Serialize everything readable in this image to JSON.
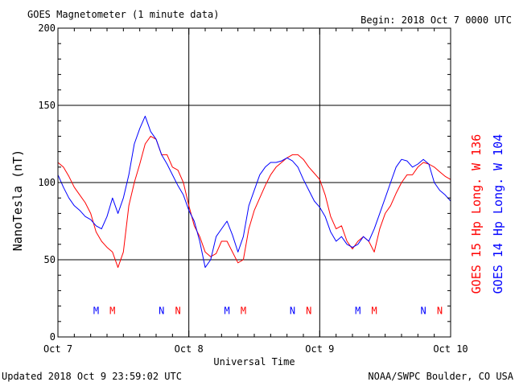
{
  "header": {
    "title": "GOES Magnetometer (1 minute data)",
    "begin": "Begin:  2018 Oct 7 0000 UTC"
  },
  "footer": {
    "updated": "Updated 2018 Oct  9 23:59:02 UTC",
    "credit": "NOAA/SWPC Boulder, CO USA"
  },
  "colors": {
    "goes15": "#ff0000",
    "goes14": "#0000ff",
    "frame": "#000000"
  },
  "chart_data": {
    "type": "line",
    "title": "GOES Magnetometer (1 minute data)",
    "xlabel": "Universal Time",
    "ylabel": "NanoTesla (nT)",
    "xlim": [
      0,
      72
    ],
    "ylim": [
      0,
      200
    ],
    "x_unit": "hours since 2018 Oct 7 0000 UTC",
    "x_ticks": [
      {
        "x": 0,
        "label": "Oct 7"
      },
      {
        "x": 24,
        "label": "Oct 8"
      },
      {
        "x": 48,
        "label": "Oct 9"
      },
      {
        "x": 72,
        "label": "Oct 10"
      }
    ],
    "y_ticks": [
      0,
      50,
      100,
      150,
      200
    ],
    "grid": true,
    "legend_position": "right, vertical",
    "series": [
      {
        "name": "GOES 15 Hp  Long. W 136",
        "color": "#ff0000",
        "points": [
          [
            0,
            113
          ],
          [
            1,
            110
          ],
          [
            2,
            104
          ],
          [
            3,
            97
          ],
          [
            4,
            92
          ],
          [
            5,
            87
          ],
          [
            6,
            80
          ],
          [
            7,
            68
          ],
          [
            8,
            62
          ],
          [
            9,
            58
          ],
          [
            10,
            55
          ],
          [
            11,
            45
          ],
          [
            12,
            55
          ],
          [
            13,
            85
          ],
          [
            14,
            100
          ],
          [
            15,
            112
          ],
          [
            16,
            125
          ],
          [
            17,
            130
          ],
          [
            18,
            128
          ],
          [
            19,
            118
          ],
          [
            20,
            118
          ],
          [
            21,
            110
          ],
          [
            22,
            108
          ],
          [
            23,
            100
          ],
          [
            24,
            85
          ],
          [
            25,
            72
          ],
          [
            26,
            65
          ],
          [
            27,
            55
          ],
          [
            28,
            52
          ],
          [
            29,
            54
          ],
          [
            30,
            62
          ],
          [
            31,
            62
          ],
          [
            32,
            55
          ],
          [
            33,
            48
          ],
          [
            34,
            50
          ],
          [
            35,
            70
          ],
          [
            36,
            82
          ],
          [
            37,
            90
          ],
          [
            38,
            98
          ],
          [
            39,
            105
          ],
          [
            40,
            110
          ],
          [
            41,
            113
          ],
          [
            42,
            116
          ],
          [
            43,
            118
          ],
          [
            44,
            118
          ],
          [
            45,
            115
          ],
          [
            46,
            110
          ],
          [
            47,
            106
          ],
          [
            48,
            102
          ],
          [
            49,
            92
          ],
          [
            50,
            78
          ],
          [
            51,
            70
          ],
          [
            52,
            72
          ],
          [
            53,
            62
          ],
          [
            54,
            57
          ],
          [
            55,
            62
          ],
          [
            56,
            65
          ],
          [
            57,
            62
          ],
          [
            58,
            55
          ],
          [
            59,
            70
          ],
          [
            60,
            80
          ],
          [
            61,
            85
          ],
          [
            62,
            93
          ],
          [
            63,
            100
          ],
          [
            64,
            105
          ],
          [
            65,
            105
          ],
          [
            66,
            110
          ],
          [
            67,
            113
          ],
          [
            68,
            112
          ],
          [
            69,
            110
          ],
          [
            70,
            107
          ],
          [
            71,
            104
          ],
          [
            72,
            102
          ]
        ]
      },
      {
        "name": "GOES 14 Hp  Long. W 104",
        "color": "#0000ff",
        "points": [
          [
            0,
            105
          ],
          [
            1,
            97
          ],
          [
            2,
            90
          ],
          [
            3,
            85
          ],
          [
            4,
            82
          ],
          [
            5,
            78
          ],
          [
            6,
            76
          ],
          [
            7,
            72
          ],
          [
            8,
            70
          ],
          [
            9,
            78
          ],
          [
            10,
            90
          ],
          [
            11,
            80
          ],
          [
            12,
            90
          ],
          [
            13,
            105
          ],
          [
            14,
            125
          ],
          [
            15,
            135
          ],
          [
            16,
            143
          ],
          [
            17,
            133
          ],
          [
            18,
            128
          ],
          [
            19,
            118
          ],
          [
            20,
            112
          ],
          [
            21,
            105
          ],
          [
            22,
            98
          ],
          [
            23,
            92
          ],
          [
            24,
            82
          ],
          [
            25,
            75
          ],
          [
            26,
            62
          ],
          [
            27,
            45
          ],
          [
            28,
            50
          ],
          [
            29,
            65
          ],
          [
            30,
            70
          ],
          [
            31,
            75
          ],
          [
            32,
            66
          ],
          [
            33,
            55
          ],
          [
            34,
            65
          ],
          [
            35,
            85
          ],
          [
            36,
            95
          ],
          [
            37,
            105
          ],
          [
            38,
            110
          ],
          [
            39,
            113
          ],
          [
            40,
            113
          ],
          [
            41,
            114
          ],
          [
            42,
            116
          ],
          [
            43,
            114
          ],
          [
            44,
            110
          ],
          [
            45,
            102
          ],
          [
            46,
            95
          ],
          [
            47,
            88
          ],
          [
            48,
            84
          ],
          [
            49,
            78
          ],
          [
            50,
            68
          ],
          [
            51,
            62
          ],
          [
            52,
            65
          ],
          [
            53,
            60
          ],
          [
            54,
            58
          ],
          [
            55,
            60
          ],
          [
            56,
            65
          ],
          [
            57,
            62
          ],
          [
            58,
            70
          ],
          [
            59,
            80
          ],
          [
            60,
            90
          ],
          [
            61,
            100
          ],
          [
            62,
            110
          ],
          [
            63,
            115
          ],
          [
            64,
            114
          ],
          [
            65,
            110
          ],
          [
            66,
            112
          ],
          [
            67,
            115
          ],
          [
            68,
            112
          ],
          [
            69,
            100
          ],
          [
            70,
            95
          ],
          [
            71,
            92
          ],
          [
            72,
            88
          ]
        ]
      }
    ],
    "markers": [
      {
        "x": 7,
        "label": "M",
        "color": "#0000ff"
      },
      {
        "x": 10,
        "label": "M",
        "color": "#ff0000"
      },
      {
        "x": 19,
        "label": "N",
        "color": "#0000ff"
      },
      {
        "x": 22,
        "label": "N",
        "color": "#ff0000"
      },
      {
        "x": 31,
        "label": "M",
        "color": "#0000ff"
      },
      {
        "x": 34,
        "label": "M",
        "color": "#ff0000"
      },
      {
        "x": 43,
        "label": "N",
        "color": "#0000ff"
      },
      {
        "x": 46,
        "label": "N",
        "color": "#ff0000"
      },
      {
        "x": 55,
        "label": "M",
        "color": "#0000ff"
      },
      {
        "x": 58,
        "label": "M",
        "color": "#ff0000"
      },
      {
        "x": 67,
        "label": "N",
        "color": "#0000ff"
      },
      {
        "x": 70,
        "label": "N",
        "color": "#ff0000"
      }
    ],
    "marker_level": 17
  }
}
